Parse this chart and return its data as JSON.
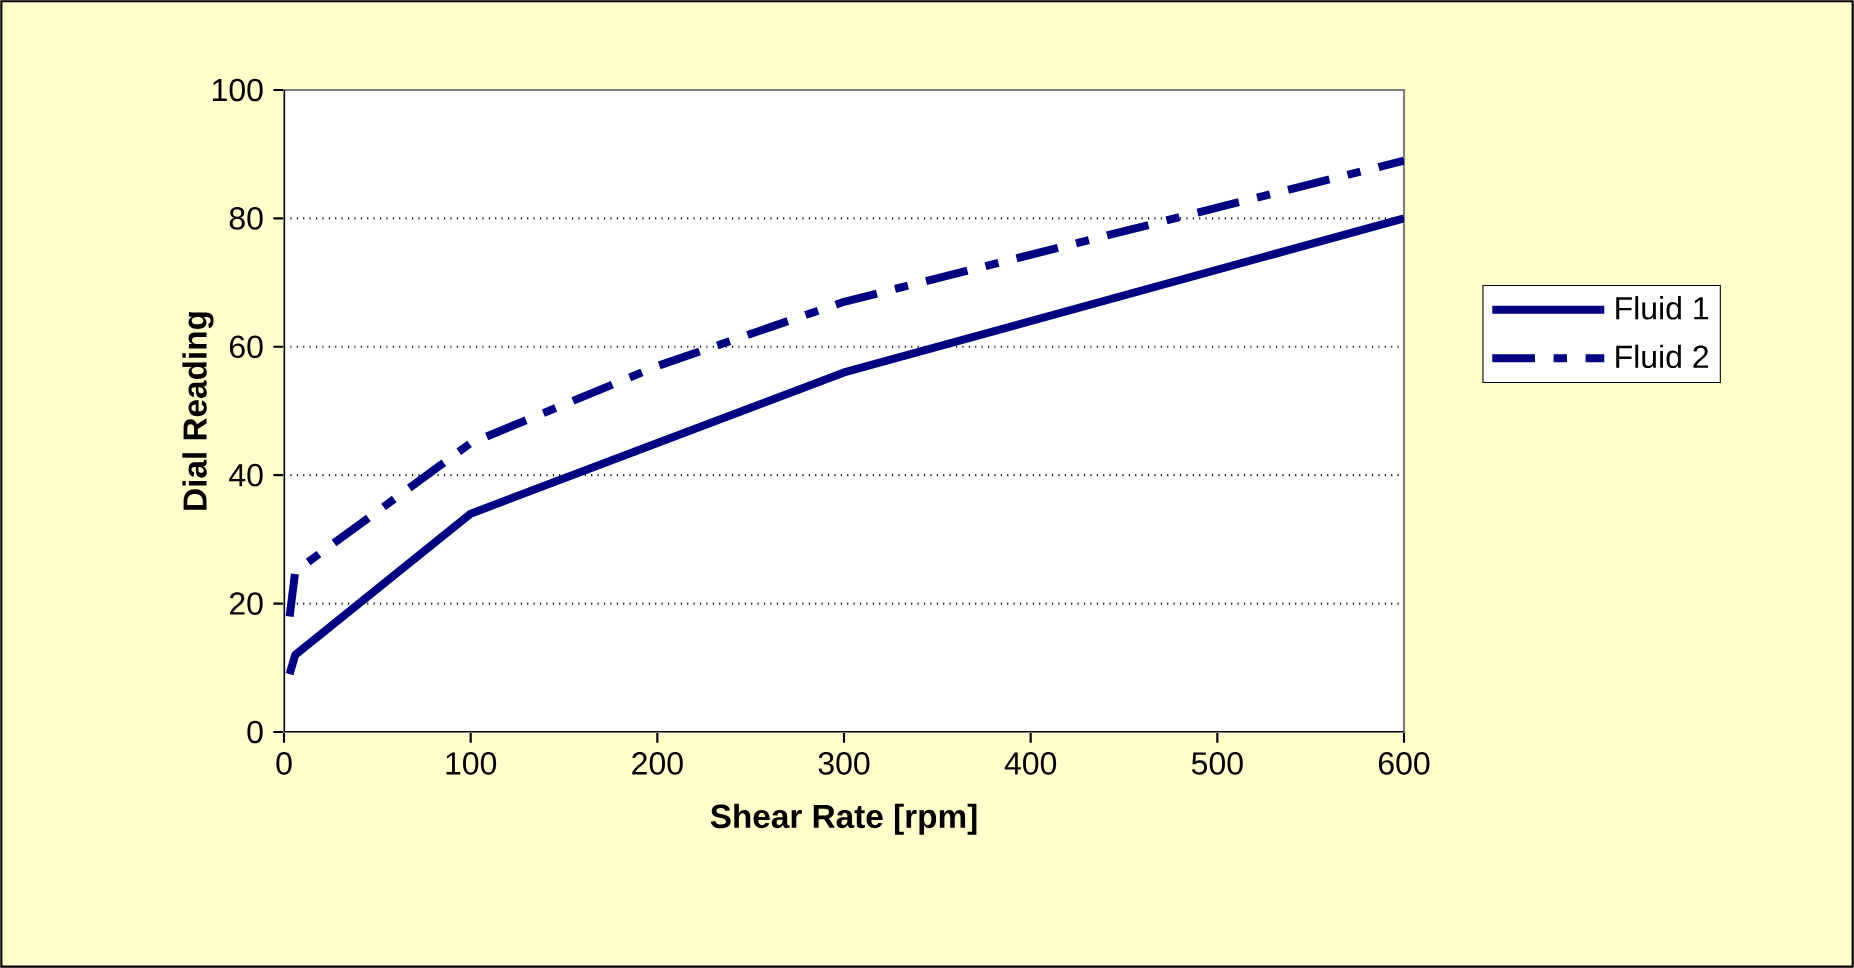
{
  "chart_data": {
    "type": "line",
    "xlabel": "Shear Rate [rpm]",
    "ylabel": "Dial Reading",
    "xlim": [
      0,
      600
    ],
    "xticks": [
      0,
      100,
      200,
      300,
      400,
      500,
      600
    ],
    "ylim": [
      0,
      100
    ],
    "yticks": [
      0,
      20,
      40,
      60,
      80,
      100
    ],
    "grid": "y",
    "legend": "right",
    "marker": "none",
    "series": [
      {
        "name": "Fluid 1",
        "color": "#000080",
        "line_style": "solid",
        "x": [
          3,
          6,
          100,
          200,
          300,
          600
        ],
        "values": [
          9,
          12,
          34,
          45,
          56,
          80
        ]
      },
      {
        "name": "Fluid 2",
        "color": "#000080",
        "line_style": "dashed",
        "x": [
          3,
          6,
          100,
          200,
          300,
          600
        ],
        "values": [
          18,
          25,
          45,
          57,
          67,
          89
        ]
      }
    ]
  }
}
